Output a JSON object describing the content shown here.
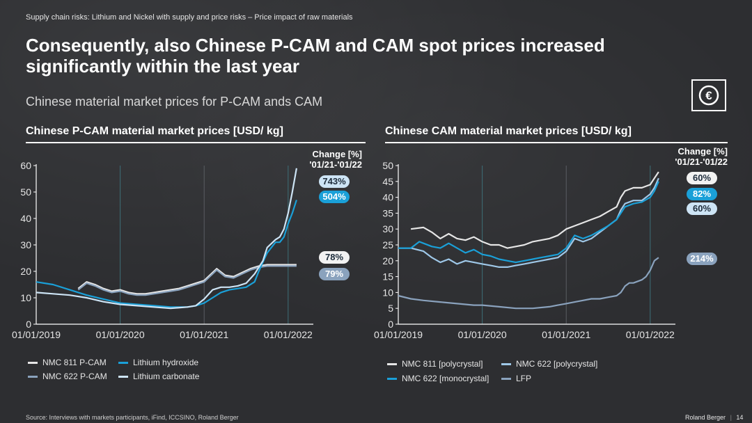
{
  "breadcrumb": "Supply chain risks: Lithium  and Nickel with  supply and price risks – Price impact of raw materials",
  "title": "Consequently, also Chinese P-CAM and CAM spot prices increased significantly within the last year",
  "subtitle": "Chinese material market prices for P-CAM ands CAM",
  "euro_icon": "euro-icon",
  "footer": {
    "source": "Source: Interviews with markets participants, iFind, ICCSINO, Roland Berger",
    "brand": "Roland Berger",
    "page_number": "14"
  },
  "chart_data": [
    {
      "type": "line",
      "title": "Chinese P-CAM material market prices [USD/ kg]",
      "change_header": [
        "Change [%]",
        "'01/21-'01/22"
      ],
      "x_tick_labels": [
        "01/01/2019",
        "01/01/2020",
        "01/01/2021",
        "01/01/2022"
      ],
      "ylim": [
        0,
        60
      ],
      "yticks": [
        0,
        10,
        20,
        30,
        40,
        50,
        60
      ],
      "x_range": [
        2019.0,
        2022.3
      ],
      "series": [
        {
          "name": "NMC 811 P-CAM",
          "color": "#e6e6e6",
          "change": "78%",
          "x": [
            2019.5,
            2019.6,
            2019.7,
            2019.8,
            2019.9,
            2020.0,
            2020.1,
            2020.2,
            2020.3,
            2020.4,
            2020.5,
            2020.6,
            2020.7,
            2020.8,
            2020.9,
            2021.0,
            2021.05,
            2021.15,
            2021.25,
            2021.35,
            2021.45,
            2021.55,
            2021.65,
            2021.75,
            2021.9,
            2022.1
          ],
          "y": [
            13.5,
            16.0,
            15.0,
            13.5,
            12.5,
            13.0,
            12.0,
            11.5,
            11.5,
            12.0,
            12.5,
            13.0,
            13.5,
            14.5,
            15.5,
            16.5,
            18.0,
            21.0,
            18.5,
            18.0,
            19.5,
            21.0,
            22.0,
            22.5,
            22.5,
            22.5
          ]
        },
        {
          "name": "NMC 622 P-CAM",
          "color": "#8aa2bd",
          "change": "79%",
          "x": [
            2019.5,
            2019.6,
            2019.7,
            2019.8,
            2019.9,
            2020.0,
            2020.1,
            2020.2,
            2020.3,
            2020.4,
            2020.5,
            2020.6,
            2020.7,
            2020.8,
            2020.9,
            2021.0,
            2021.05,
            2021.15,
            2021.25,
            2021.35,
            2021.45,
            2021.55,
            2021.65,
            2021.75,
            2021.9,
            2022.1
          ],
          "y": [
            13.0,
            15.5,
            14.5,
            13.0,
            12.0,
            12.5,
            11.5,
            11.0,
            11.0,
            11.5,
            12.0,
            12.5,
            13.0,
            14.0,
            15.0,
            16.0,
            17.5,
            20.5,
            18.0,
            17.5,
            19.0,
            20.5,
            21.5,
            22.0,
            22.0,
            22.0
          ]
        },
        {
          "name": "Lithium hydroxide",
          "color": "#1aa0d8",
          "change": "504%",
          "x": [
            2019.0,
            2019.2,
            2019.4,
            2019.6,
            2019.8,
            2020.0,
            2020.2,
            2020.4,
            2020.6,
            2020.8,
            2020.9,
            2021.0,
            2021.1,
            2021.2,
            2021.3,
            2021.4,
            2021.5,
            2021.6,
            2021.65,
            2021.75,
            2021.85,
            2021.9,
            2021.95,
            2022.0,
            2022.05,
            2022.1
          ],
          "y": [
            16.0,
            15.0,
            13.0,
            11.0,
            9.5,
            8.0,
            7.5,
            7.0,
            6.5,
            6.5,
            7.0,
            8.0,
            10.0,
            12.0,
            13.0,
            13.5,
            14.0,
            16.0,
            20.0,
            27.0,
            31.0,
            31.0,
            33.0,
            38.0,
            42.0,
            47.0
          ]
        },
        {
          "name": "Lithium carbonate",
          "color": "#cde4f5",
          "change": "743%",
          "x": [
            2019.0,
            2019.2,
            2019.4,
            2019.6,
            2019.8,
            2020.0,
            2020.2,
            2020.4,
            2020.6,
            2020.8,
            2020.9,
            2021.0,
            2021.1,
            2021.2,
            2021.3,
            2021.4,
            2021.5,
            2021.6,
            2021.7,
            2021.75,
            2021.85,
            2021.9,
            2021.95,
            2022.0,
            2022.05,
            2022.1
          ],
          "y": [
            12.0,
            11.5,
            11.0,
            10.0,
            8.5,
            7.5,
            7.0,
            6.5,
            6.0,
            6.5,
            7.0,
            9.5,
            13.0,
            14.0,
            14.0,
            14.5,
            15.5,
            19.0,
            24.0,
            29.0,
            32.0,
            33.0,
            36.0,
            42.0,
            50.0,
            59.0
          ]
        }
      ]
    },
    {
      "type": "line",
      "title": "Chinese CAM material market prices [USD/ kg]",
      "change_header": [
        "Change [%]",
        "'01/21-'01/22"
      ],
      "x_tick_labels": [
        "01/01/2019",
        "01/01/2020",
        "01/01/2021",
        "01/01/2022"
      ],
      "ylim": [
        0,
        50
      ],
      "yticks": [
        0,
        5,
        10,
        15,
        20,
        25,
        30,
        35,
        40,
        45,
        50
      ],
      "x_range": [
        2019.0,
        2022.3
      ],
      "series": [
        {
          "name": "NMC 811 [polycrystal]",
          "color": "#e6e6e6",
          "change": "60%",
          "x": [
            2019.15,
            2019.3,
            2019.4,
            2019.5,
            2019.6,
            2019.7,
            2019.8,
            2019.9,
            2020.0,
            2020.1,
            2020.2,
            2020.3,
            2020.4,
            2020.5,
            2020.6,
            2020.7,
            2020.8,
            2020.9,
            2021.0,
            2021.1,
            2021.2,
            2021.3,
            2021.4,
            2021.5,
            2021.6,
            2021.65,
            2021.7,
            2021.8,
            2021.9,
            2022.0,
            2022.05,
            2022.1
          ],
          "y": [
            30.0,
            30.5,
            29.0,
            27.0,
            28.5,
            27.0,
            26.5,
            27.5,
            26.0,
            25.0,
            25.0,
            24.0,
            24.5,
            25.0,
            26.0,
            26.5,
            27.0,
            28.0,
            30.0,
            31.0,
            32.0,
            33.0,
            34.0,
            35.5,
            37.0,
            40.0,
            42.0,
            43.0,
            43.0,
            44.0,
            46.0,
            48.0
          ]
        },
        {
          "name": "NMC 622 [polycrystal]",
          "color": "#9fc8e8",
          "change": "60%",
          "x": [
            2019.0,
            2019.15,
            2019.3,
            2019.4,
            2019.5,
            2019.6,
            2019.7,
            2019.8,
            2019.9,
            2020.0,
            2020.1,
            2020.2,
            2020.3,
            2020.4,
            2020.5,
            2020.6,
            2020.7,
            2020.8,
            2020.9,
            2021.0,
            2021.1,
            2021.2,
            2021.3,
            2021.4,
            2021.5,
            2021.6,
            2021.65,
            2021.7,
            2021.8,
            2021.9,
            2022.0,
            2022.05,
            2022.1
          ],
          "y": [
            24.0,
            24.0,
            23.0,
            21.0,
            19.5,
            20.5,
            19.0,
            20.0,
            19.5,
            19.0,
            18.5,
            18.0,
            18.0,
            18.5,
            19.0,
            19.5,
            20.0,
            20.5,
            21.0,
            23.0,
            27.0,
            26.0,
            27.0,
            29.0,
            31.0,
            33.0,
            36.0,
            38.0,
            39.0,
            39.0,
            41.0,
            43.0,
            46.0
          ]
        },
        {
          "name": "NMC 622 [monocrystal]",
          "color": "#1aa0d8",
          "change": "82%",
          "x": [
            2019.0,
            2019.15,
            2019.25,
            2019.3,
            2019.4,
            2019.5,
            2019.6,
            2019.7,
            2019.8,
            2019.9,
            2020.0,
            2020.1,
            2020.2,
            2020.3,
            2020.4,
            2020.5,
            2020.6,
            2020.7,
            2020.8,
            2020.9,
            2021.0,
            2021.1,
            2021.2,
            2021.3,
            2021.4,
            2021.5,
            2021.6,
            2021.65,
            2021.7,
            2021.8,
            2021.9,
            2022.0,
            2022.05,
            2022.1
          ],
          "y": [
            24.0,
            24.0,
            26.0,
            25.5,
            24.5,
            24.0,
            25.5,
            24.0,
            22.5,
            23.5,
            22.0,
            21.5,
            20.5,
            20.0,
            19.5,
            20.0,
            20.5,
            21.0,
            21.5,
            22.0,
            24.0,
            28.0,
            27.0,
            28.0,
            29.5,
            31.0,
            33.0,
            35.0,
            37.0,
            38.0,
            38.5,
            40.0,
            42.0,
            45.0
          ]
        },
        {
          "name": "LFP",
          "color": "#8aa2bd",
          "change": "214%",
          "x": [
            2019.0,
            2019.15,
            2019.3,
            2019.5,
            2019.7,
            2019.9,
            2020.0,
            2020.2,
            2020.4,
            2020.6,
            2020.8,
            2020.9,
            2021.0,
            2021.1,
            2021.2,
            2021.3,
            2021.4,
            2021.5,
            2021.6,
            2021.65,
            2021.7,
            2021.75,
            2021.8,
            2021.9,
            2021.95,
            2022.0,
            2022.05,
            2022.1
          ],
          "y": [
            9.0,
            8.0,
            7.5,
            7.0,
            6.5,
            6.0,
            6.0,
            5.5,
            5.0,
            5.0,
            5.5,
            6.0,
            6.5,
            7.0,
            7.5,
            8.0,
            8.0,
            8.5,
            9.0,
            10.0,
            12.0,
            13.0,
            13.0,
            14.0,
            15.0,
            17.0,
            20.0,
            21.0
          ]
        }
      ]
    }
  ]
}
